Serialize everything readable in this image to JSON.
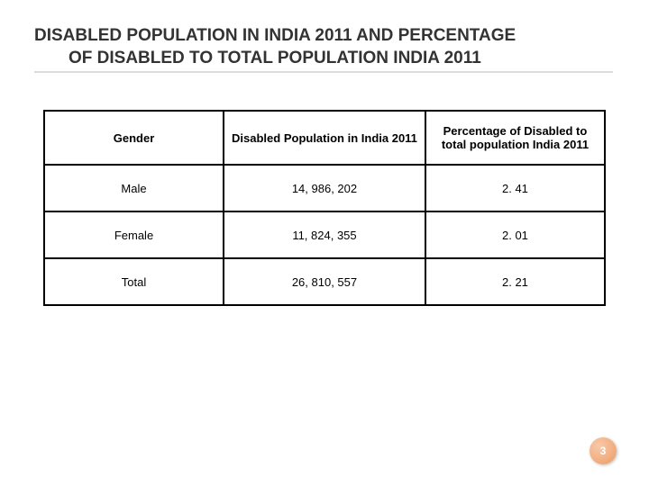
{
  "title_line1": "DISABLED POPULATION IN INDIA 2011 AND PERCENTAGE",
  "title_line2": "OF DISABLED TO TOTAL POPULATION INDIA 2011",
  "table": {
    "columns": [
      "Gender",
      "Disabled Population in India 2011",
      "Percentage of Disabled to total population India 2011"
    ],
    "rows": [
      [
        "Male",
        "14, 986, 202",
        "2. 41"
      ],
      [
        "Female",
        "11, 824, 355",
        "2. 01"
      ],
      [
        "Total",
        "26, 810, 557",
        "2. 21"
      ]
    ],
    "border_color": "#000000",
    "header_fontsize": 13,
    "cell_fontsize": 13,
    "col_widths_pct": [
      32,
      36,
      32
    ]
  },
  "page_number": "3",
  "badge_bg_light": "#f7c9a9",
  "badge_bg_mid": "#f2b184",
  "badge_bg_dark": "#e69a60",
  "background_color": "#ffffff"
}
